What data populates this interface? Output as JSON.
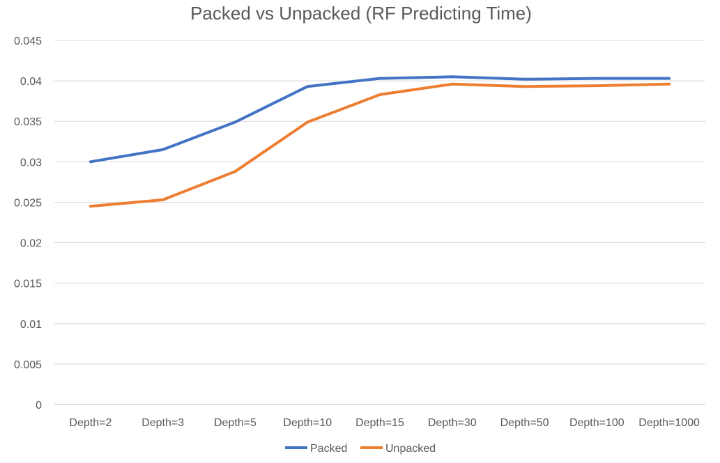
{
  "chart_data": {
    "type": "line",
    "title": "Packed vs Unpacked (RF Predicting Time)",
    "xlabel": "",
    "ylabel": "",
    "categories": [
      "Depth=2",
      "Depth=3",
      "Depth=5",
      "Depth=10",
      "Depth=15",
      "Depth=30",
      "Depth=50",
      "Depth=100",
      "Depth=1000"
    ],
    "series": [
      {
        "name": "Packed",
        "color": "#4472C4",
        "values": [
          0.03,
          0.0315,
          0.0349,
          0.0393,
          0.0403,
          0.0405,
          0.0402,
          0.0403,
          0.0403
        ]
      },
      {
        "name": "Unpacked",
        "color": "#ED7D31",
        "values": [
          0.0245,
          0.0253,
          0.0288,
          0.0349,
          0.0383,
          0.0396,
          0.0393,
          0.0394,
          0.0396
        ]
      }
    ],
    "ylim": [
      0,
      0.045
    ],
    "yticks": [
      "0",
      "0.005",
      "0.01",
      "0.015",
      "0.02",
      "0.025",
      "0.03",
      "0.035",
      "0.04",
      "0.045"
    ],
    "grid": true,
    "legend": "bottom-center"
  }
}
